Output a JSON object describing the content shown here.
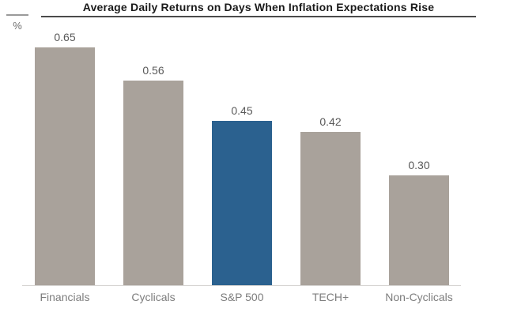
{
  "chart_data": {
    "type": "bar",
    "title": "Average Daily Returns on Days When Inflation Expectations Rise",
    "unit_label": "%",
    "categories": [
      "Financials",
      "Cyclicals",
      "S&P 500",
      "TECH+",
      "Non-Cyclicals"
    ],
    "values": [
      0.65,
      0.56,
      0.45,
      0.42,
      0.3
    ],
    "value_labels": [
      "0.65",
      "0.56",
      "0.45",
      "0.42",
      "0.30"
    ],
    "highlight_category": "S&P 500",
    "xlabel": "",
    "ylabel": "%",
    "ylim": [
      0,
      0.7
    ],
    "grid": false,
    "legend_position": "none",
    "colors": {
      "bar_default": "#a9a29b",
      "bar_highlight": "#2b618f",
      "value_label": "#595959",
      "category_label": "#7d7d7d",
      "title": "#1a1a1a",
      "axis_line": "#d6d4d2",
      "title_underline": "#4a4a4a",
      "unit_line": "#9a9a9a",
      "unit_label": "#6f6f6f",
      "background": "#ffffff"
    }
  }
}
